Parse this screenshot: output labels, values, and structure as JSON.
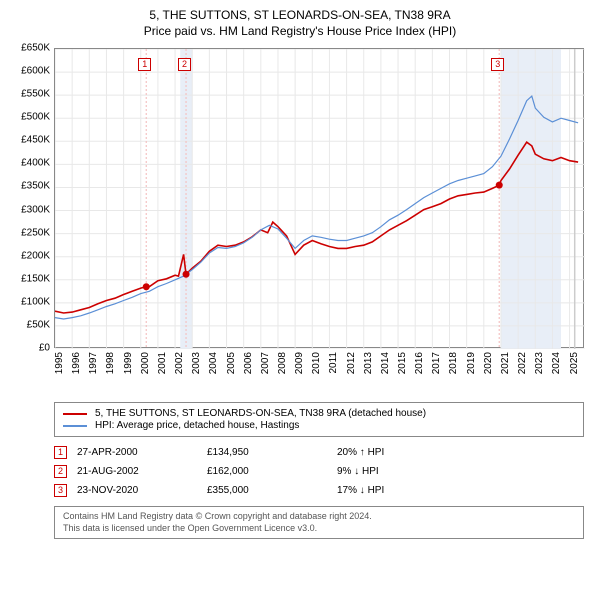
{
  "title": "5, THE SUTTONS, ST LEONARDS-ON-SEA, TN38 9RA",
  "subtitle": "Price paid vs. HM Land Registry's House Price Index (HPI)",
  "chart": {
    "type": "line",
    "background_color": "#ffffff",
    "border_color": "#888888",
    "grid_color": "#e8e8e8",
    "xlim": [
      1995,
      2025.9
    ],
    "ylim": [
      0,
      650000
    ],
    "yticks": [
      0,
      50000,
      100000,
      150000,
      200000,
      250000,
      300000,
      350000,
      400000,
      450000,
      500000,
      550000,
      600000,
      650000
    ],
    "ytick_labels": [
      "£0",
      "£50K",
      "£100K",
      "£150K",
      "£200K",
      "£250K",
      "£300K",
      "£350K",
      "£400K",
      "£450K",
      "£500K",
      "£550K",
      "£600K",
      "£650K"
    ],
    "xticks": [
      1995,
      1996,
      1997,
      1998,
      1999,
      2000,
      2001,
      2002,
      2003,
      2004,
      2005,
      2006,
      2007,
      2008,
      2009,
      2010,
      2011,
      2012,
      2013,
      2014,
      2015,
      2016,
      2017,
      2018,
      2019,
      2020,
      2021,
      2022,
      2023,
      2024,
      2025
    ],
    "series": [
      {
        "name": "property",
        "label": "5, THE SUTTONS, ST LEONARDS-ON-SEA, TN38 9RA (detached house)",
        "color": "#cc0000",
        "line_width": 1.6,
        "data": [
          [
            1995,
            82000
          ],
          [
            1995.5,
            78000
          ],
          [
            1996,
            80000
          ],
          [
            1996.5,
            85000
          ],
          [
            1997,
            90000
          ],
          [
            1997.5,
            98000
          ],
          [
            1998,
            105000
          ],
          [
            1998.5,
            110000
          ],
          [
            1999,
            118000
          ],
          [
            1999.5,
            125000
          ],
          [
            2000,
            132000
          ],
          [
            2000.32,
            134950
          ],
          [
            2000.5,
            135000
          ],
          [
            2001,
            148000
          ],
          [
            2001.5,
            152000
          ],
          [
            2002,
            160000
          ],
          [
            2002.2,
            158000
          ],
          [
            2002.5,
            205000
          ],
          [
            2002.64,
            162000
          ],
          [
            2003,
            175000
          ],
          [
            2003.5,
            190000
          ],
          [
            2004,
            212000
          ],
          [
            2004.5,
            225000
          ],
          [
            2005,
            222000
          ],
          [
            2005.5,
            225000
          ],
          [
            2006,
            232000
          ],
          [
            2006.5,
            243000
          ],
          [
            2007,
            258000
          ],
          [
            2007.4,
            252000
          ],
          [
            2007.7,
            275000
          ],
          [
            2008,
            265000
          ],
          [
            2008.5,
            245000
          ],
          [
            2009,
            205000
          ],
          [
            2009.5,
            225000
          ],
          [
            2010,
            235000
          ],
          [
            2010.5,
            228000
          ],
          [
            2011,
            222000
          ],
          [
            2011.5,
            218000
          ],
          [
            2012,
            218000
          ],
          [
            2012.5,
            222000
          ],
          [
            2013,
            225000
          ],
          [
            2013.5,
            232000
          ],
          [
            2014,
            245000
          ],
          [
            2014.5,
            258000
          ],
          [
            2015,
            268000
          ],
          [
            2015.5,
            278000
          ],
          [
            2016,
            290000
          ],
          [
            2016.5,
            302000
          ],
          [
            2017,
            308000
          ],
          [
            2017.5,
            315000
          ],
          [
            2018,
            325000
          ],
          [
            2018.5,
            332000
          ],
          [
            2019,
            335000
          ],
          [
            2019.5,
            338000
          ],
          [
            2020,
            340000
          ],
          [
            2020.5,
            348000
          ],
          [
            2020.9,
            355000
          ],
          [
            2021,
            365000
          ],
          [
            2021.5,
            390000
          ],
          [
            2022,
            420000
          ],
          [
            2022.5,
            448000
          ],
          [
            2022.8,
            440000
          ],
          [
            2023,
            422000
          ],
          [
            2023.5,
            412000
          ],
          [
            2024,
            408000
          ],
          [
            2024.5,
            415000
          ],
          [
            2025,
            408000
          ],
          [
            2025.5,
            405000
          ]
        ]
      },
      {
        "name": "hpi",
        "label": "HPI: Average price, detached house, Hastings",
        "color": "#5b8fd6",
        "line_width": 1.2,
        "data": [
          [
            1995,
            68000
          ],
          [
            1995.5,
            65000
          ],
          [
            1996,
            68000
          ],
          [
            1996.5,
            72000
          ],
          [
            1997,
            78000
          ],
          [
            1997.5,
            85000
          ],
          [
            1998,
            92000
          ],
          [
            1998.5,
            98000
          ],
          [
            1999,
            105000
          ],
          [
            1999.5,
            112000
          ],
          [
            2000,
            120000
          ],
          [
            2000.5,
            125000
          ],
          [
            2001,
            135000
          ],
          [
            2001.5,
            142000
          ],
          [
            2002,
            150000
          ],
          [
            2002.5,
            158000
          ],
          [
            2003,
            172000
          ],
          [
            2003.5,
            188000
          ],
          [
            2004,
            208000
          ],
          [
            2004.5,
            220000
          ],
          [
            2005,
            218000
          ],
          [
            2005.5,
            222000
          ],
          [
            2006,
            230000
          ],
          [
            2006.5,
            242000
          ],
          [
            2007,
            258000
          ],
          [
            2007.5,
            268000
          ],
          [
            2008,
            260000
          ],
          [
            2008.5,
            240000
          ],
          [
            2009,
            218000
          ],
          [
            2009.5,
            235000
          ],
          [
            2010,
            245000
          ],
          [
            2010.5,
            242000
          ],
          [
            2011,
            238000
          ],
          [
            2011.5,
            235000
          ],
          [
            2012,
            235000
          ],
          [
            2012.5,
            240000
          ],
          [
            2013,
            245000
          ],
          [
            2013.5,
            252000
          ],
          [
            2014,
            265000
          ],
          [
            2014.5,
            280000
          ],
          [
            2015,
            290000
          ],
          [
            2015.5,
            302000
          ],
          [
            2016,
            315000
          ],
          [
            2016.5,
            328000
          ],
          [
            2017,
            338000
          ],
          [
            2017.5,
            348000
          ],
          [
            2018,
            358000
          ],
          [
            2018.5,
            365000
          ],
          [
            2019,
            370000
          ],
          [
            2019.5,
            375000
          ],
          [
            2020,
            380000
          ],
          [
            2020.5,
            395000
          ],
          [
            2021,
            418000
          ],
          [
            2021.5,
            455000
          ],
          [
            2022,
            495000
          ],
          [
            2022.5,
            538000
          ],
          [
            2022.8,
            548000
          ],
          [
            2023,
            522000
          ],
          [
            2023.5,
            502000
          ],
          [
            2024,
            492000
          ],
          [
            2024.5,
            500000
          ],
          [
            2025,
            495000
          ],
          [
            2025.5,
            490000
          ]
        ]
      }
    ],
    "markers": [
      {
        "num": "1",
        "x": 2000.32,
        "y": 134950,
        "color": "#cc0000",
        "band": null,
        "vline": "#f4c2c2"
      },
      {
        "num": "2",
        "x": 2002.64,
        "y": 162000,
        "color": "#cc0000",
        "band": [
          2002.3,
          2003.0
        ],
        "band_color": "#e8eef7",
        "vline": "#f4c2c2"
      },
      {
        "num": "3",
        "x": 2020.9,
        "y": 355000,
        "color": "#cc0000",
        "band": [
          2021.0,
          2024.5
        ],
        "band_color": "#e8eef7",
        "vline": "#f4c2c2"
      }
    ],
    "extra_vline": {
      "x": 2025.3,
      "color": "#cccccc"
    }
  },
  "legend": {
    "items": [
      {
        "color": "#cc0000",
        "label": "5, THE SUTTONS, ST LEONARDS-ON-SEA, TN38 9RA (detached house)"
      },
      {
        "color": "#5b8fd6",
        "label": "HPI: Average price, detached house, Hastings"
      }
    ]
  },
  "events": [
    {
      "num": "1",
      "date": "27-APR-2000",
      "price": "£134,950",
      "delta": "20% ↑ HPI"
    },
    {
      "num": "2",
      "date": "21-AUG-2002",
      "price": "£162,000",
      "delta": "9% ↓ HPI"
    },
    {
      "num": "3",
      "date": "23-NOV-2020",
      "price": "£355,000",
      "delta": "17% ↓ HPI"
    }
  ],
  "footer": {
    "line1": "Contains HM Land Registry data © Crown copyright and database right 2024.",
    "line2": "This data is licensed under the Open Government Licence v3.0."
  }
}
